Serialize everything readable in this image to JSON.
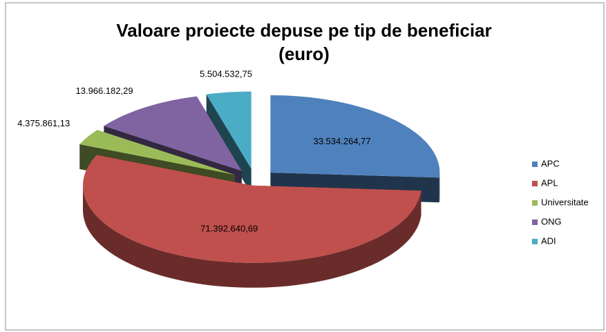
{
  "chart_data": {
    "type": "pie3d",
    "title": [
      "Valoare proiecte depuse pe tip de beneficiar",
      "(euro)"
    ],
    "categories": [
      "APC",
      "APL",
      "Universitate",
      "ONG",
      "ADI"
    ],
    "values": [
      33534264.77,
      71392640.69,
      4375861.13,
      13966182.29,
      5504532.75
    ],
    "value_labels": [
      "33.534.264,77",
      "71.392.640,69",
      "4.375.861,13",
      "13.966.182,29",
      "5.504.532,75"
    ],
    "colors": [
      "#4f81bd",
      "#c0504d",
      "#9bbb59",
      "#8064a2",
      "#4bacc6"
    ],
    "legend": "right"
  }
}
